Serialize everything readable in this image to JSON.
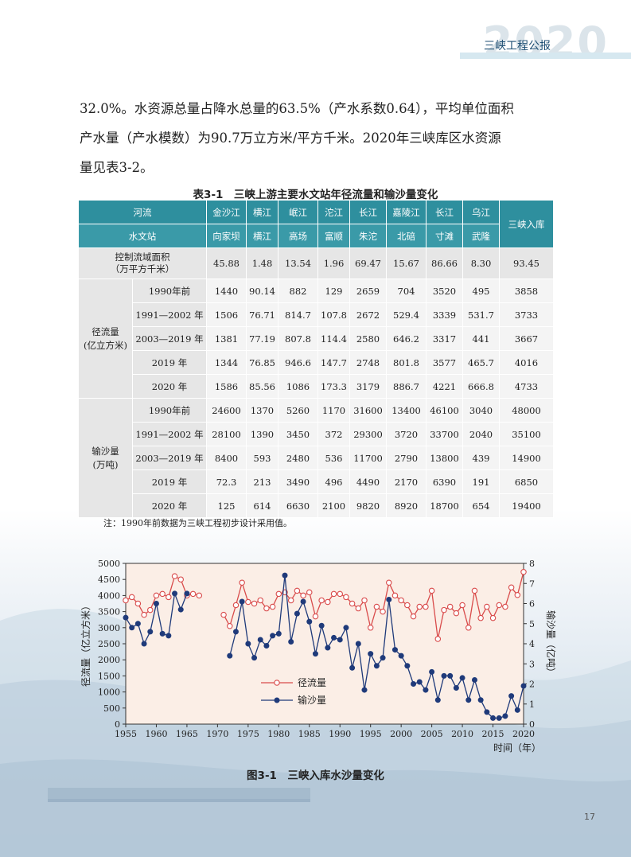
{
  "header": {
    "year_watermark": "2020",
    "title": "三峡工程公报"
  },
  "paragraph": {
    "line1": "32.0%。水资源总量占降水总量的63.5%（产水系数0.64），平均单位面积",
    "line2": "产水量（产水模数）为90.7万立方米/平方千米。2020年三峡库区水资源",
    "line3": "量见表3-2。"
  },
  "table": {
    "caption": "表3-1　三峡上游主要水文站年径流量和输沙量变化",
    "header_row1_label": "河流",
    "header_row2_label": "水文站",
    "rivers": [
      "金沙江",
      "横江",
      "岷江",
      "沱江",
      "长江",
      "嘉陵江",
      "长江",
      "乌江"
    ],
    "stations": [
      "向家坝",
      "横江",
      "高场",
      "富顺",
      "朱沱",
      "北碚",
      "寸滩",
      "武隆"
    ],
    "last_col_header": "三峡入库",
    "area_label_1": "控制流域面积",
    "area_label_2": "（万平方千米）",
    "area_values": [
      "45.88",
      "1.48",
      "13.54",
      "1.96",
      "69.47",
      "15.67",
      "86.66",
      "8.30",
      "93.45"
    ],
    "runoff_label_1": "径流量",
    "runoff_label_2": "(亿立方米)",
    "runoff_rows": [
      {
        "period": "1990年前",
        "values": [
          "1440",
          "90.14",
          "882",
          "129",
          "2659",
          "704",
          "3520",
          "495",
          "3858"
        ]
      },
      {
        "period": "1991—2002 年",
        "values": [
          "1506",
          "76.71",
          "814.7",
          "107.8",
          "2672",
          "529.4",
          "3339",
          "531.7",
          "3733"
        ]
      },
      {
        "period": "2003—2019 年",
        "values": [
          "1381",
          "77.19",
          "807.8",
          "114.4",
          "2580",
          "646.2",
          "3317",
          "441",
          "3667"
        ]
      },
      {
        "period": "2019 年",
        "values": [
          "1344",
          "76.85",
          "946.6",
          "147.7",
          "2748",
          "801.8",
          "3577",
          "465.7",
          "4016"
        ]
      },
      {
        "period": "2020 年",
        "values": [
          "1586",
          "85.56",
          "1086",
          "173.3",
          "3179",
          "886.7",
          "4221",
          "666.8",
          "4733"
        ]
      }
    ],
    "sediment_label_1": "输沙量",
    "sediment_label_2": "(万吨)",
    "sediment_rows": [
      {
        "period": "1990年前",
        "values": [
          "24600",
          "1370",
          "5260",
          "1170",
          "31600",
          "13400",
          "46100",
          "3040",
          "48000"
        ]
      },
      {
        "period": "1991—2002 年",
        "values": [
          "28100",
          "1390",
          "3450",
          "372",
          "29300",
          "3720",
          "33700",
          "2040",
          "35100"
        ]
      },
      {
        "period": "2003—2019 年",
        "values": [
          "8400",
          "593",
          "2480",
          "536",
          "11700",
          "2790",
          "13800",
          "439",
          "14900"
        ]
      },
      {
        "period": "2019 年",
        "values": [
          "72.3",
          "213",
          "3490",
          "496",
          "4490",
          "2170",
          "6390",
          "191",
          "6850"
        ]
      },
      {
        "period": "2020 年",
        "values": [
          "125",
          "614",
          "6630",
          "2100",
          "9820",
          "8920",
          "18700",
          "654",
          "19400"
        ]
      }
    ],
    "note": "注：1990年前数据为三峡工程初步设计采用值。"
  },
  "chart_data": {
    "type": "line",
    "title": "图3-1　三峡入库水沙量变化",
    "xlabel": "时间（年）",
    "ylabel_left": "径流量（亿立方米）",
    "ylabel_right": "输沙量（亿吨）",
    "xlim": [
      1955,
      2020
    ],
    "ylim_left": [
      0,
      5000
    ],
    "ylim_right": [
      0,
      8
    ],
    "x_ticks": [
      1955,
      1960,
      1965,
      1970,
      1975,
      1980,
      1985,
      1990,
      1995,
      2000,
      2005,
      2010,
      2015,
      2020
    ],
    "y_ticks_left": [
      0,
      500,
      1000,
      1500,
      2000,
      2500,
      3000,
      3500,
      4000,
      4500,
      5000
    ],
    "y_ticks_right": [
      0,
      1,
      2,
      3,
      4,
      5,
      6,
      7,
      8
    ],
    "legend_placement": "lower-center",
    "series": [
      {
        "name": "径流量",
        "axis": "left",
        "color": "#d94b4b",
        "marker": "open-circle",
        "x": [
          1955,
          1956,
          1957,
          1958,
          1959,
          1960,
          1961,
          1962,
          1963,
          1964,
          1965,
          1966,
          1967,
          null,
          1971,
          1972,
          1973,
          1974,
          1975,
          1976,
          1977,
          1978,
          1979,
          1980,
          1981,
          1982,
          1983,
          1984,
          1985,
          1986,
          1987,
          1988,
          1989,
          1990,
          1991,
          1992,
          1993,
          1994,
          1995,
          1996,
          1997,
          1998,
          1999,
          2000,
          2001,
          2002,
          2003,
          2004,
          2005,
          2006,
          2007,
          2008,
          2009,
          2010,
          2011,
          2012,
          2013,
          2014,
          2015,
          2016,
          2017,
          2018,
          2019,
          2020
        ],
        "values": [
          3850,
          3950,
          3750,
          3400,
          3550,
          4000,
          4050,
          3950,
          4600,
          4500,
          4000,
          4050,
          4000,
          null,
          3400,
          3050,
          3700,
          4400,
          3800,
          3750,
          3850,
          3600,
          3650,
          4050,
          4100,
          3850,
          4150,
          4000,
          4100,
          3350,
          3850,
          3800,
          4050,
          4050,
          3950,
          3750,
          3600,
          3850,
          3000,
          3650,
          3500,
          4400,
          4000,
          3850,
          3700,
          3350,
          3650,
          3650,
          4150,
          2650,
          3550,
          3650,
          3450,
          3700,
          3000,
          4150,
          3300,
          3650,
          3300,
          3700,
          3650,
          4250,
          4016,
          4733
        ]
      },
      {
        "name": "输沙量",
        "axis": "right",
        "color": "#1f3a7a",
        "marker": "filled-circle",
        "x": [
          1955,
          1956,
          1957,
          1958,
          1959,
          1960,
          1961,
          1962,
          1963,
          1964,
          1965,
          1966,
          1967,
          null,
          1971,
          1972,
          1973,
          1974,
          1975,
          1976,
          1977,
          1978,
          1979,
          1980,
          1981,
          1982,
          1983,
          1984,
          1985,
          1986,
          1987,
          1988,
          1989,
          1990,
          1991,
          1992,
          1993,
          1994,
          1995,
          1996,
          1997,
          1998,
          1999,
          2000,
          2001,
          2002,
          2003,
          2004,
          2005,
          2006,
          2007,
          2008,
          2009,
          2010,
          2011,
          2012,
          2013,
          2014,
          2015,
          2016,
          2017,
          2018,
          2019,
          2020
        ],
        "values": [
          5.3,
          4.8,
          5.0,
          4.0,
          4.6,
          6.0,
          4.5,
          4.4,
          6.5,
          5.7,
          6.5,
          null,
          null,
          null,
          null,
          3.4,
          4.6,
          6.1,
          4.0,
          3.3,
          4.2,
          3.9,
          4.4,
          4.5,
          7.4,
          4.1,
          5.5,
          6.1,
          5.1,
          3.5,
          4.9,
          3.8,
          4.3,
          4.2,
          4.8,
          2.8,
          4.0,
          1.7,
          3.5,
          2.9,
          3.3,
          6.2,
          3.7,
          3.4,
          2.9,
          2.0,
          2.1,
          1.7,
          2.6,
          1.2,
          2.4,
          2.4,
          1.8,
          2.3,
          1.2,
          2.2,
          1.2,
          0.6,
          0.3,
          0.3,
          0.4,
          1.4,
          0.7,
          1.9
        ]
      }
    ]
  },
  "page_number": "17"
}
